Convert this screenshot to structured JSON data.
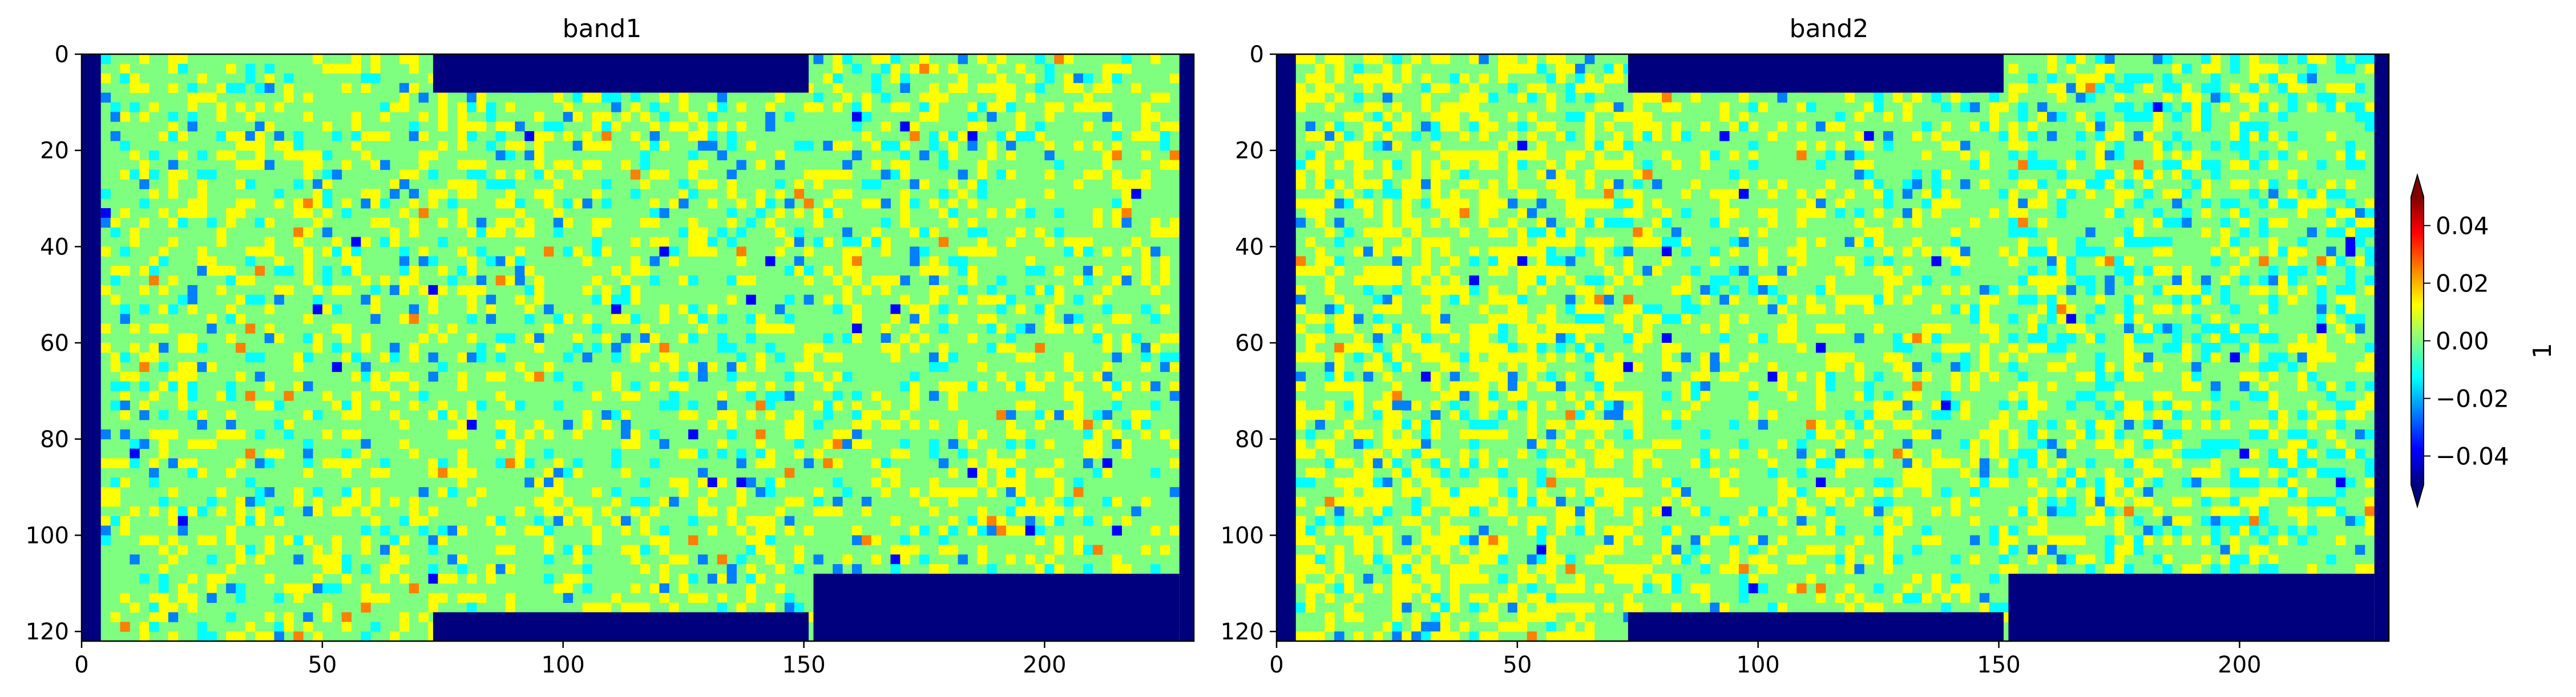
{
  "chart_data": [
    {
      "type": "heatmap",
      "title": "band1",
      "xlim": [
        0,
        231
      ],
      "ylim": [
        122,
        0
      ],
      "xticks": [
        0,
        50,
        100,
        150,
        200
      ],
      "yticks": [
        0,
        20,
        40,
        60,
        80,
        100,
        120
      ],
      "nodata_regions": [
        {
          "x0": 0,
          "x1": 4,
          "y0": 0,
          "y1": 122
        },
        {
          "x0": 228,
          "x1": 231,
          "y0": 0,
          "y1": 122
        },
        {
          "x0": 73,
          "x1": 151,
          "y0": 0,
          "y1": 8
        },
        {
          "x0": 73,
          "x1": 151,
          "y0": 116,
          "y1": 122
        },
        {
          "x0": 152,
          "x1": 228,
          "y0": 108,
          "y1": 122
        }
      ],
      "dominant_value": 0.0,
      "value_range": [
        -0.05,
        0.05
      ]
    },
    {
      "type": "heatmap",
      "title": "band2",
      "xlim": [
        0,
        231
      ],
      "ylim": [
        122,
        0
      ],
      "xticks": [
        0,
        50,
        100,
        150,
        200
      ],
      "yticks": [
        0,
        20,
        40,
        60,
        80,
        100,
        120
      ],
      "nodata_regions": [
        {
          "x0": 0,
          "x1": 4,
          "y0": 0,
          "y1": 122
        },
        {
          "x0": 228,
          "x1": 231,
          "y0": 0,
          "y1": 122
        },
        {
          "x0": 73,
          "x1": 151,
          "y0": 0,
          "y1": 8
        },
        {
          "x0": 73,
          "x1": 151,
          "y0": 116,
          "y1": 122
        },
        {
          "x0": 152,
          "x1": 228,
          "y0": 108,
          "y1": 122
        }
      ],
      "dominant_value": 0.0,
      "value_range": [
        -0.05,
        0.05
      ]
    }
  ],
  "colorbar": {
    "label": "1",
    "colormap": "jet",
    "extend": "both",
    "range": [
      -0.05,
      0.05
    ],
    "ticks": [
      0.04,
      0.02,
      0.0,
      -0.02,
      -0.04
    ],
    "tick_labels": [
      "0.04",
      "0.02",
      "0.00",
      "−0.02",
      "−0.04"
    ]
  },
  "colors": {
    "nodata": "#00007f",
    "jet": [
      "#00007f",
      "#0000ff",
      "#007fff",
      "#00ffff",
      "#7fff7f",
      "#ffff00",
      "#ff7f00",
      "#ff0000",
      "#7f0000"
    ]
  }
}
